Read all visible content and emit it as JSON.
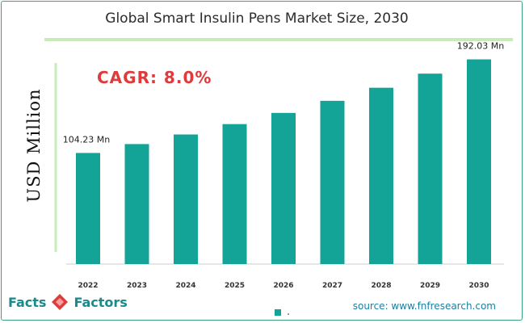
{
  "chart_data": {
    "type": "bar",
    "title": "Global Smart Insulin Pens Market Size, 2030",
    "ylabel": "USD Million",
    "xlabel": "",
    "categories": [
      "2022",
      "2023",
      "2024",
      "2025",
      "2026",
      "2027",
      "2028",
      "2029",
      "2030"
    ],
    "values": [
      104.23,
      112.57,
      121.57,
      131.3,
      141.8,
      153.15,
      165.4,
      178.63,
      192.03
    ],
    "ylim": [
      0,
      220
    ],
    "data_labels": [
      {
        "category": "2022",
        "text": "104.23 Mn"
      },
      {
        "category": "2030",
        "text": "192.03 Mn"
      }
    ],
    "annotation": "CAGR:  8.0%",
    "bar_color": "#14a397",
    "grid": false,
    "legend": "bottom-center"
  },
  "branding": {
    "logo_word_1": "Facts",
    "logo_amp": "&",
    "logo_word_2": "Factors",
    "source": "source: www.fnfresearch.com"
  },
  "colors": {
    "accent_red": "#e03a3a",
    "title_rule": "#c8ecb7",
    "frame": "#3aa37c"
  }
}
